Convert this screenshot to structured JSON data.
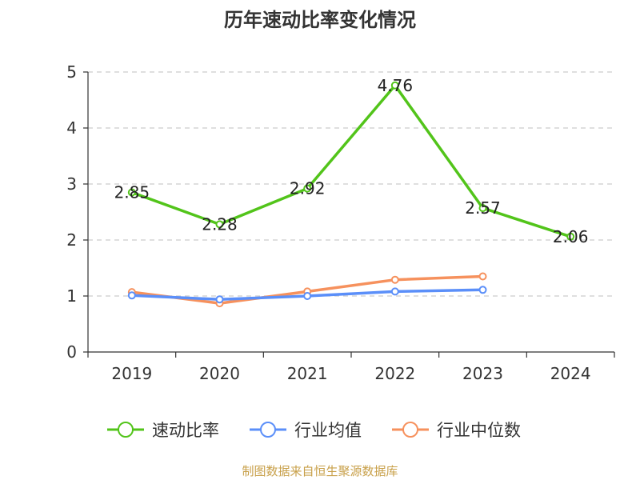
{
  "chart_data": {
    "type": "line",
    "title": "历年速动比率变化情况",
    "xlabel": "",
    "ylabel": "",
    "categories": [
      "2019",
      "2020",
      "2021",
      "2022",
      "2023",
      "2024"
    ],
    "ylim": [
      0,
      5
    ],
    "yticks": [
      0,
      1,
      2,
      3,
      4,
      5
    ],
    "grid": "horizontal-dashed",
    "legend_position": "bottom-center",
    "series": [
      {
        "name": "速动比率",
        "color": "#52c41a",
        "values": [
          2.85,
          2.28,
          2.92,
          4.76,
          2.57,
          2.06
        ],
        "show_labels": true
      },
      {
        "name": "行业均值",
        "color": "#5b8ff9",
        "values": [
          1.01,
          0.94,
          1.0,
          1.08,
          1.11,
          null
        ],
        "show_labels": false
      },
      {
        "name": "行业中位数",
        "color": "#f6915d",
        "values": [
          1.07,
          0.87,
          1.08,
          1.29,
          1.35,
          null
        ],
        "show_labels": false
      }
    ],
    "value_labels": [
      "2.85",
      "2.28",
      "2.92",
      "4.76",
      "2.57",
      "2.06"
    ]
  },
  "footer": {
    "text": "制图数据来自恒生聚源数据库",
    "color": "#c8a04a"
  }
}
